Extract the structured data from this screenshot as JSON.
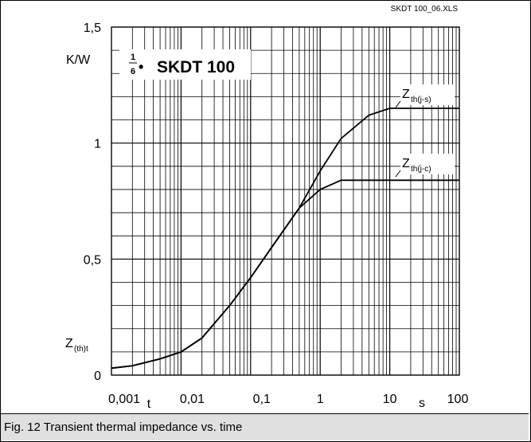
{
  "chart_data": {
    "type": "line",
    "file_label": "SKDT 100_06.XLS",
    "device": {
      "numerator": "1",
      "denominator": "6",
      "bullet": "•",
      "name": "SKDT 100"
    },
    "y_unit": "K/W",
    "y_label": {
      "main": "Z",
      "sub": "(th)t"
    },
    "x_label": "t",
    "x_unit": "s",
    "x_log": true,
    "xlim": [
      0.001,
      100
    ],
    "xticks": [
      {
        "value": 0.001,
        "label": "0,001"
      },
      {
        "value": 0.01,
        "label": "0,01"
      },
      {
        "value": 0.1,
        "label": "0,1"
      },
      1,
      10,
      100
    ],
    "ylim": [
      0,
      1.5
    ],
    "yticks": [
      0,
      {
        "value": 0.5,
        "label": "0,5"
      },
      1,
      {
        "value": 1.5,
        "label": "1,5"
      }
    ],
    "yminor": [
      0.1,
      0.2,
      0.3,
      0.4,
      0.6,
      0.7,
      0.8,
      0.9,
      1.1,
      1.2,
      1.3,
      1.4
    ],
    "grid": true,
    "series": [
      {
        "name": "Z",
        "subscript": "th(j-s)",
        "color": "#000000",
        "x": [
          0.001,
          0.002,
          0.005,
          0.01,
          0.02,
          0.05,
          0.1,
          0.2,
          0.5,
          1,
          2,
          5,
          10,
          100
        ],
        "values": [
          0.03,
          0.04,
          0.07,
          0.1,
          0.16,
          0.3,
          0.42,
          0.55,
          0.72,
          0.88,
          1.02,
          1.12,
          1.15,
          1.15
        ]
      },
      {
        "name": "Z",
        "subscript": "th(j-c)",
        "color": "#000000",
        "x": [
          0.001,
          0.002,
          0.005,
          0.01,
          0.02,
          0.05,
          0.1,
          0.2,
          0.5,
          1,
          2,
          3,
          100
        ],
        "values": [
          0.03,
          0.04,
          0.07,
          0.1,
          0.16,
          0.3,
          0.42,
          0.55,
          0.72,
          0.8,
          0.84,
          0.84,
          0.84
        ]
      }
    ]
  },
  "caption": "Fig. 12 Transient thermal impedance vs. time"
}
